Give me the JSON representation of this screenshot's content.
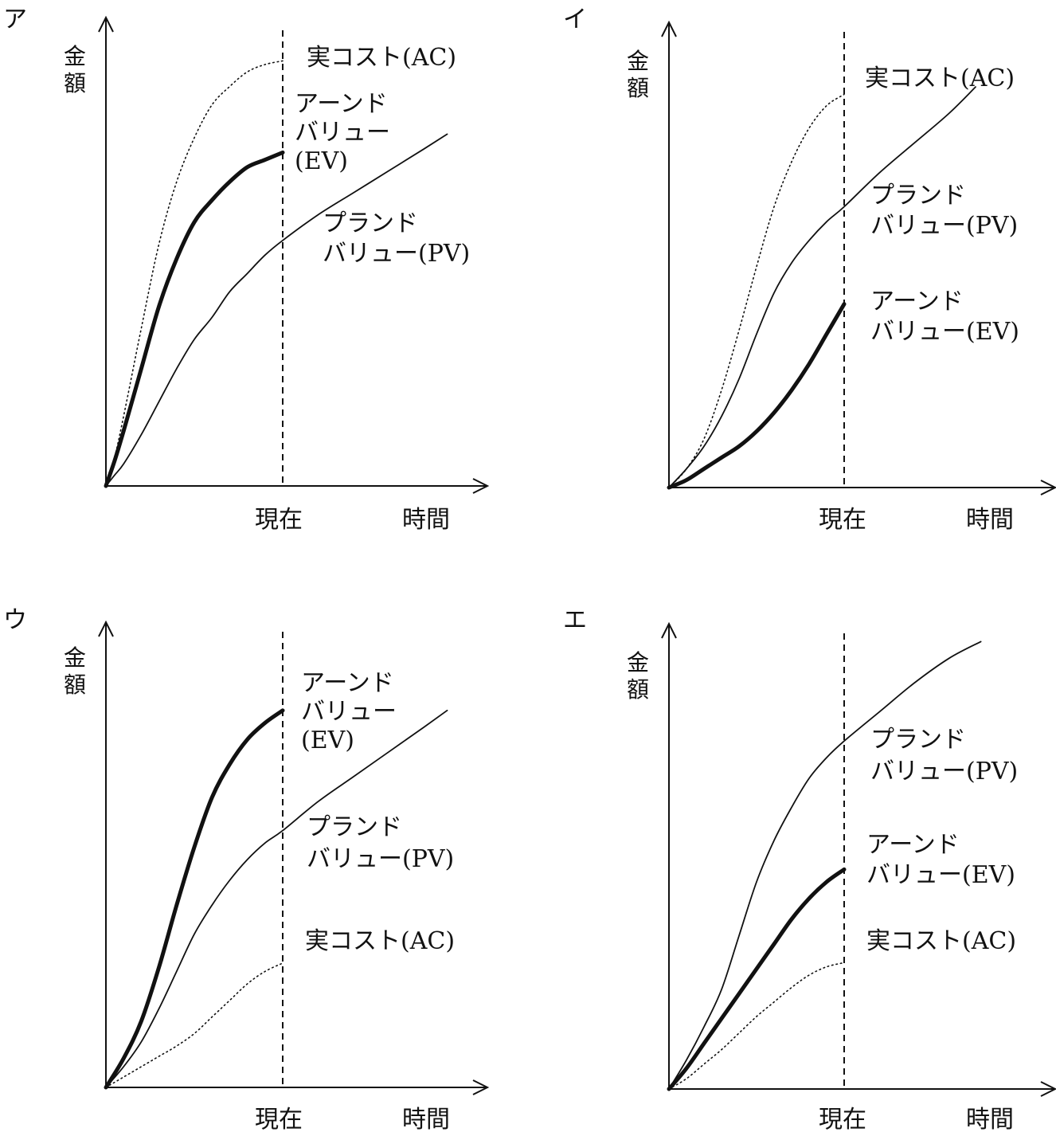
{
  "colors": {
    "line": "#111111",
    "background": "#ffffff"
  },
  "axes": {
    "ylabel": "金額",
    "xlabel": "時間",
    "now_label": "現在"
  },
  "chart_data": [
    {
      "type": "line",
      "panel_label": "ア",
      "x": [
        0,
        0.5,
        1,
        2,
        3,
        4,
        5,
        6,
        7,
        8,
        9,
        10
      ],
      "series": [
        {
          "name": "プランド\nバリュー(PV)",
          "style": "thin",
          "values": [
            0,
            0.3,
            0.6,
            1.4,
            2.3,
            3.2,
            4.0,
            4.6,
            5.3,
            5.8,
            6.3,
            6.7
          ],
          "x_end": 19.3
        },
        {
          "name": "アーンド\nバリュー(EV)",
          "style": "thick",
          "values": [
            0,
            0.7,
            1.5,
            3.2,
            4.9,
            6.2,
            7.2,
            7.8,
            8.3,
            8.7,
            8.9,
            9.1
          ]
        },
        {
          "name": "実コスト(AC)",
          "style": "dotted",
          "values": [
            0,
            0.8,
            1.9,
            4.3,
            6.6,
            8.3,
            9.5,
            10.4,
            10.9,
            11.3,
            11.5,
            11.6
          ]
        }
      ],
      "pv_tail": [
        [
          10,
          6.7
        ],
        [
          12,
          7.4
        ],
        [
          14,
          8.0
        ],
        [
          16,
          8.6
        ],
        [
          18,
          9.2
        ],
        [
          19.3,
          9.6
        ]
      ]
    },
    {
      "type": "line",
      "panel_label": "イ",
      "x": [
        0,
        1,
        2,
        3,
        4,
        5,
        6,
        7,
        8,
        9,
        10
      ],
      "series": [
        {
          "name": "プランド\nバリュー(PV)",
          "style": "thin",
          "values": [
            0,
            0.5,
            1.1,
            1.9,
            2.9,
            4.1,
            5.2,
            6.0,
            6.6,
            7.1,
            7.5
          ]
        },
        {
          "name": "アーンド\nバリュー(EV)",
          "style": "thick",
          "values": [
            0,
            0.2,
            0.5,
            0.8,
            1.1,
            1.5,
            2.0,
            2.6,
            3.3,
            4.1,
            4.9
          ]
        },
        {
          "name": "実コスト(AC)",
          "style": "dotted",
          "values": [
            0,
            0.5,
            1.3,
            2.6,
            4.2,
            5.9,
            7.5,
            8.7,
            9.6,
            10.2,
            10.5
          ]
        }
      ],
      "pv_tail": [
        [
          10,
          7.5
        ],
        [
          12,
          8.4
        ],
        [
          14,
          9.2
        ],
        [
          16,
          10.0
        ],
        [
          17.5,
          10.7
        ]
      ]
    },
    {
      "type": "line",
      "panel_label": "ウ",
      "x": [
        0,
        1,
        2,
        3,
        4,
        5,
        6,
        7,
        8,
        9,
        10
      ],
      "series": [
        {
          "name": "プランド\nバリュー(PV)",
          "style": "thin",
          "values": [
            0,
            0.5,
            1.1,
            1.9,
            2.8,
            3.7,
            4.4,
            5.0,
            5.5,
            5.9,
            6.2
          ]
        },
        {
          "name": "アーンド\nバリュー(EV)",
          "style": "thick",
          "values": [
            0,
            0.7,
            1.6,
            2.9,
            4.4,
            5.8,
            7.0,
            7.8,
            8.4,
            8.8,
            9.1
          ]
        },
        {
          "name": "実コスト(AC)",
          "style": "dotted",
          "values": [
            0,
            0.25,
            0.5,
            0.75,
            1.0,
            1.3,
            1.7,
            2.1,
            2.5,
            2.8,
            3.0
          ]
        }
      ],
      "pv_tail": [
        [
          10,
          6.2
        ],
        [
          12,
          6.9
        ],
        [
          14,
          7.5
        ],
        [
          16,
          8.1
        ],
        [
          18,
          8.7
        ],
        [
          19.3,
          9.1
        ]
      ]
    },
    {
      "type": "line",
      "panel_label": "エ",
      "x": [
        0,
        1,
        2,
        3,
        4,
        5,
        6,
        7,
        8,
        9,
        10
      ],
      "series": [
        {
          "name": "プランド\nバリュー(PV)",
          "style": "thin",
          "values": [
            0,
            0.7,
            1.5,
            2.4,
            3.7,
            5.0,
            6.0,
            6.8,
            7.5,
            8.0,
            8.4
          ]
        },
        {
          "name": "アーンド\nバリュー(EV)",
          "style": "thick",
          "values": [
            0,
            0.5,
            1.1,
            1.7,
            2.3,
            2.9,
            3.5,
            4.1,
            4.6,
            5.0,
            5.3
          ]
        },
        {
          "name": "実コスト(AC)",
          "style": "dotted",
          "values": [
            0,
            0.25,
            0.6,
            0.95,
            1.35,
            1.75,
            2.1,
            2.45,
            2.75,
            2.95,
            3.05
          ]
        }
      ],
      "pv_tail": [
        [
          10,
          8.4
        ],
        [
          12,
          9.1
        ],
        [
          14,
          9.8
        ],
        [
          16,
          10.4
        ],
        [
          17.8,
          10.8
        ]
      ]
    }
  ]
}
